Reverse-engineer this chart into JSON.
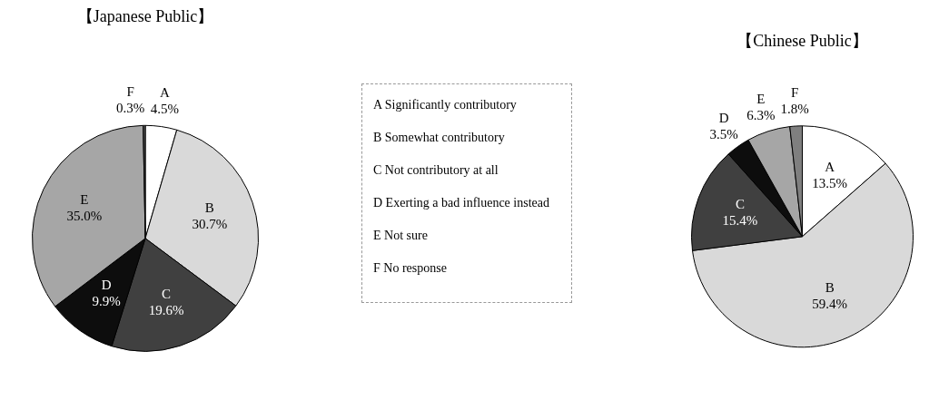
{
  "chart_data": [
    {
      "type": "pie",
      "title": "【Japanese Public】",
      "categories": [
        "A",
        "B",
        "C",
        "D",
        "E",
        "F"
      ],
      "values": [
        4.5,
        30.7,
        19.6,
        9.9,
        35.0,
        0.3
      ],
      "colors": [
        "#ffffff",
        "#d9d9d9",
        "#404040",
        "#0d0d0d",
        "#a6a6a6",
        "#595959"
      ],
      "value_labels": [
        "4.5%",
        "30.7%",
        "19.6%",
        "9.9%",
        "35.0%",
        "0.3%"
      ]
    },
    {
      "type": "other",
      "annotations": [
        "A Significantly contributory",
        "B Somewhat contributory",
        "C Not contributory at all",
        "D Exerting a bad influence instead",
        "E Not sure",
        "F No response"
      ]
    },
    {
      "type": "pie",
      "title": "【Chinese Public】",
      "categories": [
        "A",
        "B",
        "C",
        "D",
        "E",
        "F"
      ],
      "values": [
        13.5,
        59.4,
        15.4,
        3.5,
        6.3,
        1.8
      ],
      "colors": [
        "#ffffff",
        "#d9d9d9",
        "#404040",
        "#0d0d0d",
        "#a6a6a6",
        "#7f7f7f"
      ],
      "value_labels": [
        "13.5%",
        "59.4%",
        "15.4%",
        "3.5%",
        "6.3%",
        "1.8%"
      ]
    }
  ]
}
